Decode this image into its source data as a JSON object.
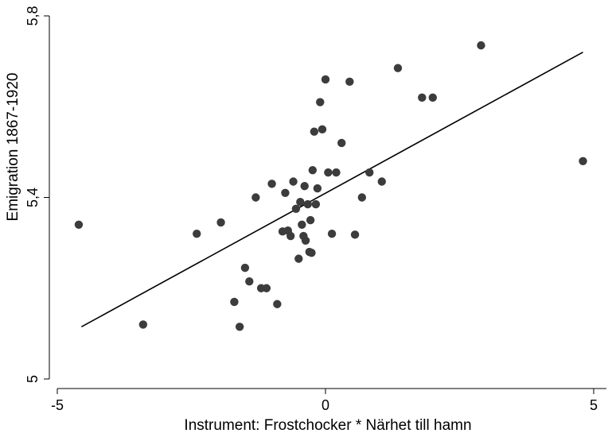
{
  "chart_data": {
    "type": "scatter",
    "xlabel": "Instrument: Frostchocker * Närhet till hamn",
    "ylabel": "Emigration 1867-1920",
    "xlim": [
      -5.15,
      5.25
    ],
    "ylim": [
      4.98,
      5.81
    ],
    "x_ticks": [
      -5,
      0,
      5
    ],
    "x_tick_labels": [
      "-5",
      "0",
      "5"
    ],
    "y_ticks": [
      5.0,
      5.4,
      5.8
    ],
    "y_tick_labels": [
      "5",
      "5,4",
      "5,8"
    ],
    "grid": false,
    "legend": "none",
    "points": [
      {
        "x": -4.6,
        "y": 5.34
      },
      {
        "x": -3.4,
        "y": 5.12
      },
      {
        "x": -2.4,
        "y": 5.32
      },
      {
        "x": -1.95,
        "y": 5.345
      },
      {
        "x": -1.7,
        "y": 5.17
      },
      {
        "x": -1.6,
        "y": 5.115
      },
      {
        "x": -1.5,
        "y": 5.245
      },
      {
        "x": -1.42,
        "y": 5.215
      },
      {
        "x": -1.3,
        "y": 5.4
      },
      {
        "x": -1.2,
        "y": 5.2
      },
      {
        "x": -1.1,
        "y": 5.2
      },
      {
        "x": -1.0,
        "y": 5.43
      },
      {
        "x": -0.9,
        "y": 5.165
      },
      {
        "x": -0.8,
        "y": 5.325
      },
      {
        "x": -0.75,
        "y": 5.41
      },
      {
        "x": -0.7,
        "y": 5.327
      },
      {
        "x": -0.65,
        "y": 5.315
      },
      {
        "x": -0.6,
        "y": 5.435
      },
      {
        "x": -0.55,
        "y": 5.375
      },
      {
        "x": -0.5,
        "y": 5.265
      },
      {
        "x": -0.47,
        "y": 5.39
      },
      {
        "x": -0.44,
        "y": 5.34
      },
      {
        "x": -0.41,
        "y": 5.315
      },
      {
        "x": -0.39,
        "y": 5.425
      },
      {
        "x": -0.37,
        "y": 5.305
      },
      {
        "x": -0.33,
        "y": 5.385
      },
      {
        "x": -0.3,
        "y": 5.28
      },
      {
        "x": -0.28,
        "y": 5.35
      },
      {
        "x": -0.26,
        "y": 5.278
      },
      {
        "x": -0.24,
        "y": 5.46
      },
      {
        "x": -0.21,
        "y": 5.545
      },
      {
        "x": -0.18,
        "y": 5.385
      },
      {
        "x": -0.15,
        "y": 5.42
      },
      {
        "x": -0.1,
        "y": 5.61
      },
      {
        "x": -0.06,
        "y": 5.55
      },
      {
        "x": 0.0,
        "y": 5.66
      },
      {
        "x": 0.05,
        "y": 5.455
      },
      {
        "x": 0.12,
        "y": 5.32
      },
      {
        "x": 0.2,
        "y": 5.455
      },
      {
        "x": 0.3,
        "y": 5.52
      },
      {
        "x": 0.45,
        "y": 5.655
      },
      {
        "x": 0.55,
        "y": 5.318
      },
      {
        "x": 0.68,
        "y": 5.4
      },
      {
        "x": 0.82,
        "y": 5.455
      },
      {
        "x": 1.05,
        "y": 5.435
      },
      {
        "x": 1.35,
        "y": 5.685
      },
      {
        "x": 1.8,
        "y": 5.62
      },
      {
        "x": 2.0,
        "y": 5.62
      },
      {
        "x": 2.9,
        "y": 5.735
      },
      {
        "x": 4.8,
        "y": 5.48
      }
    ],
    "fit_line": {
      "x": [
        -4.55,
        4.8
      ],
      "y": [
        5.115,
        5.72
      ]
    }
  }
}
